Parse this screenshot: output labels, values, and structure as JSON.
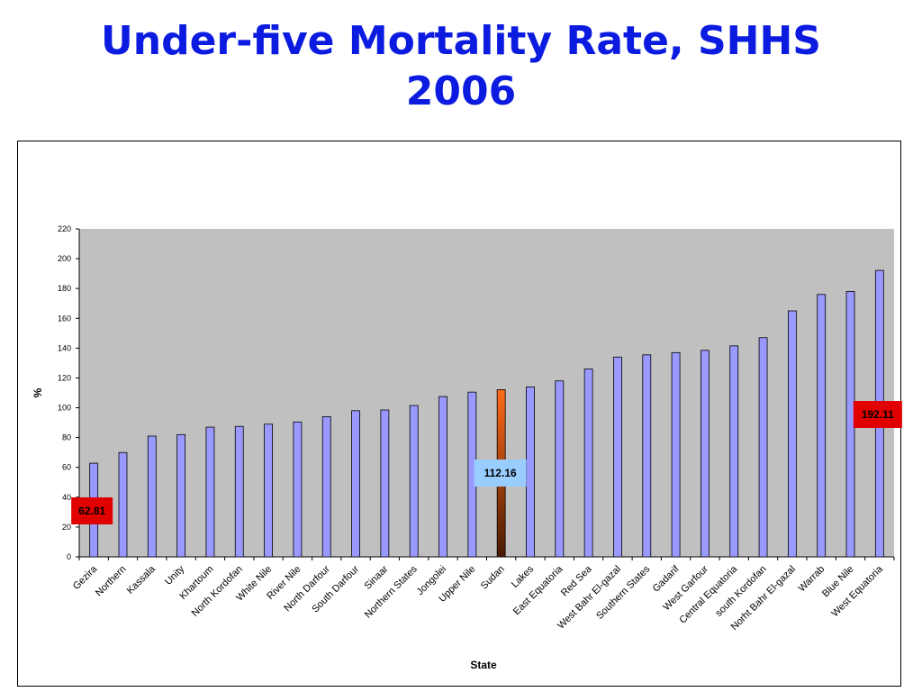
{
  "slide": {
    "title_line1": "Under-five Mortality Rate, SHHS",
    "title_line2": "2006"
  },
  "chart_data": {
    "type": "bar",
    "title": "Under-five Mortality Rate, SHHS 2006",
    "xlabel": "State",
    "ylabel": "%",
    "ylim": [
      0,
      220
    ],
    "yticks": [
      0,
      20,
      40,
      60,
      80,
      100,
      120,
      140,
      160,
      180,
      200,
      220
    ],
    "grid": false,
    "categories": [
      "Gezira",
      "Northern",
      "Kassala",
      "Unity",
      "Khartoum",
      "North Kordofan",
      "White Nile",
      "River Nile",
      "North Darfour",
      "South Darfour",
      "Sinaar",
      "Northern States",
      "Jongolei",
      "Upper Nile",
      "Sudan",
      "Lakes",
      "East Equatoria",
      "Red Sea",
      "West Bahr El-gazal",
      "Southern States",
      "Gadarif",
      "West Garfour",
      "Central Equatoria",
      "south Kordofan",
      "Norht Bahr El-gazal",
      "Warrab",
      "Blue Nile",
      "West Equatoria"
    ],
    "values": [
      62.81,
      70,
      81,
      82,
      87,
      87.5,
      89,
      90.5,
      94,
      98,
      98.5,
      101.5,
      107.5,
      110.5,
      112.16,
      114,
      118,
      126,
      134,
      135.5,
      137,
      138.5,
      141.5,
      147,
      165,
      176,
      178,
      192.11
    ],
    "highlight_category": "Sudan",
    "colors": {
      "bar": "#9999ff",
      "highlight_top": "#ff6a1a",
      "highlight_bottom": "#4a1a00",
      "plot_bg": "#c0c0c0",
      "callout_red": "#e00000",
      "callout_blue": "#99ccff",
      "title": "#0b1be0"
    },
    "annotations": [
      {
        "category": "Gezira",
        "text": "62.81",
        "style": "red"
      },
      {
        "category": "Sudan",
        "text": "112.16",
        "style": "blue"
      },
      {
        "category": "West Equatoria",
        "text": "192.11",
        "style": "red"
      }
    ]
  }
}
